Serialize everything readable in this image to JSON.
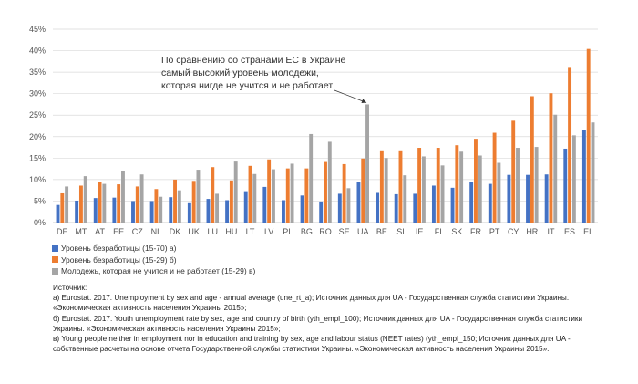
{
  "chart_data": {
    "type": "bar",
    "categories": [
      "DE",
      "MT",
      "AT",
      "EE",
      "CZ",
      "NL",
      "DK",
      "UK",
      "LU",
      "HU",
      "LT",
      "LV",
      "PL",
      "BG",
      "RO",
      "SE",
      "UA",
      "BE",
      "SI",
      "IE",
      "FI",
      "SK",
      "FR",
      "PT",
      "CY",
      "HR",
      "IT",
      "ES",
      "EL"
    ],
    "series": [
      {
        "name": "Уровень безработицы (15-70) а)",
        "color": "#4472c4",
        "values": [
          4.1,
          5.1,
          5.7,
          5.8,
          5.0,
          5.0,
          5.9,
          4.5,
          5.5,
          5.2,
          7.3,
          8.3,
          5.2,
          6.3,
          4.9,
          6.7,
          9.5,
          6.9,
          6.6,
          6.7,
          8.6,
          8.1,
          9.4,
          9.0,
          11.1,
          11.1,
          11.2,
          17.2,
          21.5
        ]
      },
      {
        "name": "Уровень безработицы (15-29) б)",
        "color": "#ed7d31",
        "values": [
          6.8,
          8.6,
          9.4,
          8.9,
          8.4,
          7.8,
          10.0,
          9.7,
          12.9,
          9.8,
          13.2,
          14.7,
          12.6,
          12.6,
          14.1,
          13.6,
          14.9,
          16.6,
          16.6,
          17.4,
          17.4,
          18.0,
          19.5,
          20.9,
          23.7,
          29.4,
          30.1,
          36.0,
          40.4
        ]
      },
      {
        "name": "Молодежь, которая не учится и не работает (15-29) в)",
        "color": "#a5a5a5",
        "values": [
          8.4,
          10.8,
          9.0,
          12.1,
          11.2,
          6.0,
          7.5,
          12.3,
          6.7,
          14.2,
          11.3,
          12.4,
          13.7,
          20.6,
          18.8,
          8.0,
          27.5,
          15.0,
          11.0,
          15.4,
          13.3,
          16.5,
          15.6,
          13.9,
          17.4,
          17.6,
          25.1,
          20.3,
          23.3
        ]
      }
    ],
    "ylim": [
      0,
      45
    ],
    "yticks": [
      0,
      5,
      10,
      15,
      20,
      25,
      30,
      35,
      40,
      45
    ],
    "ytick_labels": [
      "0%",
      "5%",
      "10%",
      "15%",
      "20%",
      "25%",
      "30%",
      "35%",
      "40%",
      "45%"
    ],
    "grid": true,
    "legend_position": "bottom-left",
    "annotation": {
      "lines": [
        "По сравнению со странами ЕС в Украине",
        "самый высокий уровень молодежи,",
        "которая нигде не учится и не работает"
      ],
      "target_category": "UA"
    }
  },
  "sources": {
    "lines": [
      "Источник:",
      "а) Eurostat. 2017. Unemployment by sex and age - annual average (une_rt_a); Источник данных  для UA - Государственная служба статистики Украины.",
      "«Экономическая активность населения Украины 2015»;",
      "б) Eurostat. 2017.  Youth unemployment rate by sex, age and country of birth (yth_empl_100); Источник данных  для UA - Государственная служба статистики",
      "Украины. «Экономическая активность населения Украины 2015»;",
      "в) Young people neither in employment nor in education and training by sex, age and labour status (NEET rates) (yth_empl_150; Источник данных  для UA -",
      "собственные расчеты на основе отчета Государственной службы статистики Украины.  «Экономическая активность населения Украины 2015»."
    ]
  }
}
